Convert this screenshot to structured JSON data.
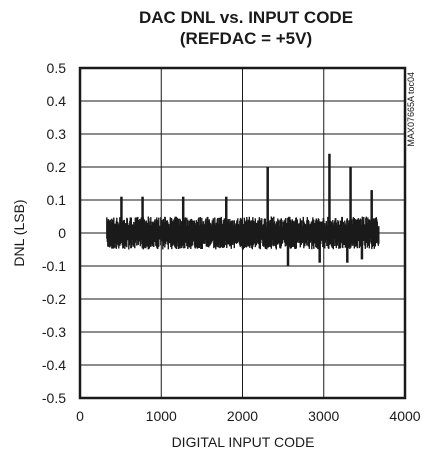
{
  "chart_data": {
    "type": "line",
    "title": "DAC DNL vs. INPUT CODE",
    "subtitle": "(REFDAC = +5V)",
    "xlabel": "DIGITAL INPUT CODE",
    "ylabel": "DNL (LSB)",
    "watermark": "MAX07665A toc04",
    "xlim": [
      0,
      4000
    ],
    "ylim": [
      -0.5,
      0.5
    ],
    "x_ticks": [
      0,
      1000,
      2000,
      3000,
      4000
    ],
    "y_ticks": [
      0.5,
      0.4,
      0.3,
      0.2,
      0.1,
      0,
      -0.1,
      -0.2,
      -0.3,
      -0.4,
      -0.5
    ],
    "x_tick_labels": [
      "0",
      "1000",
      "2000",
      "3000",
      "4000"
    ],
    "y_tick_labels": [
      "0.5",
      "0.4",
      "0.3",
      "0.2",
      "0.1",
      "0",
      "-0.1",
      "-0.2",
      "-0.3",
      "-0.4",
      "-0.5"
    ],
    "grid": true,
    "series_color": "#1a1a1a",
    "noise_band": {
      "x_start": 330,
      "x_end": 3680,
      "typical_min": -0.05,
      "typical_max": 0.05
    },
    "spikes": [
      {
        "x": 510,
        "y": 0.11
      },
      {
        "x": 770,
        "y": 0.11
      },
      {
        "x": 1270,
        "y": 0.11
      },
      {
        "x": 1800,
        "y": 0.11
      },
      {
        "x": 2310,
        "y": 0.2
      },
      {
        "x": 3070,
        "y": 0.24
      },
      {
        "x": 3330,
        "y": 0.2
      },
      {
        "x": 3590,
        "y": 0.13
      }
    ],
    "dips": [
      {
        "x": 2560,
        "y": -0.1
      },
      {
        "x": 2950,
        "y": -0.09
      },
      {
        "x": 3290,
        "y": -0.09
      },
      {
        "x": 3470,
        "y": -0.08
      }
    ]
  }
}
